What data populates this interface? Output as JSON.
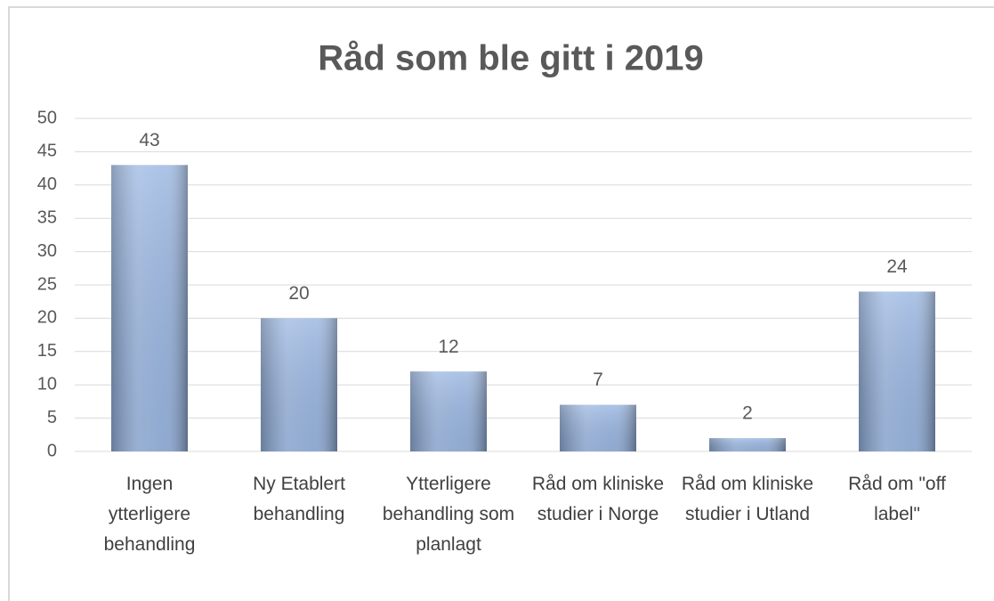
{
  "chart_data": {
    "type": "bar",
    "title": "Råd som ble gitt i 2019",
    "categories": [
      "Ingen ytterligere behandling",
      "Ny Etablert behandling",
      "Ytterligere behandling som planlagt",
      "Råd om kliniske studier i Norge",
      "Råd om kliniske studier i Utland",
      "Råd om \"off label\""
    ],
    "values": [
      43,
      20,
      12,
      7,
      2,
      24
    ],
    "color": "#95b3e0",
    "ylim": [
      0,
      50
    ],
    "yticks": [
      0,
      5,
      10,
      15,
      20,
      25,
      30,
      35,
      40,
      45,
      50
    ],
    "grid": true
  }
}
